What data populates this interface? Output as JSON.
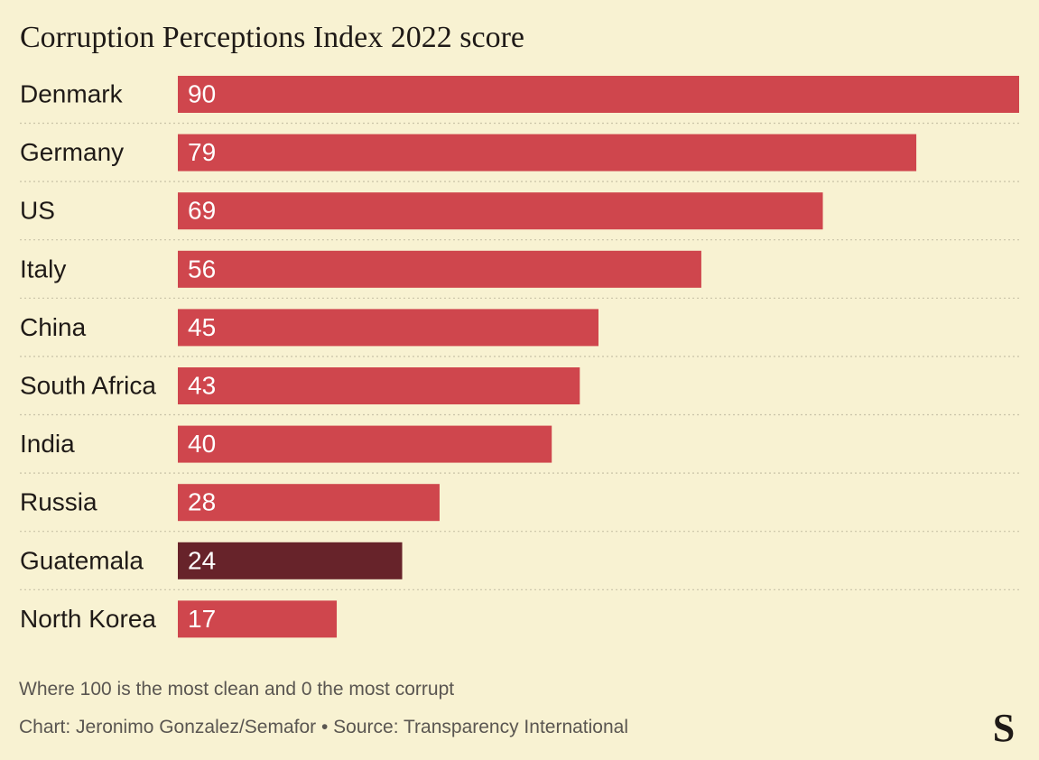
{
  "title": "Corruption Perceptions Index 2022 score",
  "footnote": "Where 100 is the most clean and 0 the most corrupt",
  "credit": "Chart: Jeronimo Gonzalez/Semafor • Source: Transparency International",
  "logo_text": "S",
  "colors": {
    "background": "#f8f2d2",
    "bar": "#cf464d",
    "highlight": "#67232a",
    "label": "#1f1a17",
    "value_text": "#ffffff",
    "separator": "#c9c3a8"
  },
  "chart_data": {
    "type": "bar",
    "orientation": "horizontal",
    "title": "Corruption Perceptions Index 2022 score",
    "categories": [
      "Denmark",
      "Germany",
      "US",
      "Italy",
      "China",
      "South Africa",
      "India",
      "Russia",
      "Guatemala",
      "North Korea"
    ],
    "values": [
      90,
      79,
      69,
      56,
      45,
      43,
      40,
      28,
      24,
      17
    ],
    "highlight": "Guatemala",
    "xlim": [
      0,
      90
    ],
    "data_labels": true,
    "grid": false
  }
}
